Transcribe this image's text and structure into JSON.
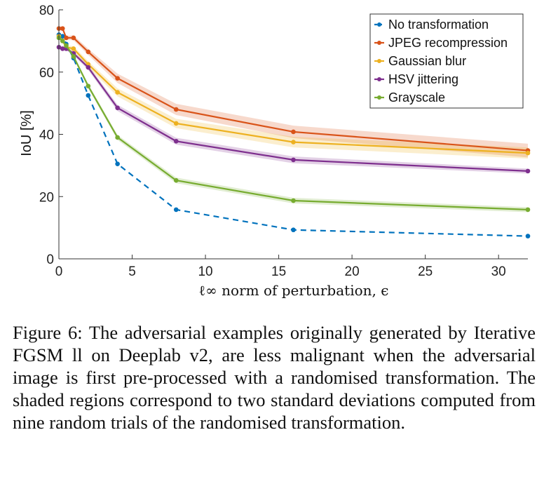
{
  "chart_data": {
    "type": "line",
    "xlabel": "ℓ∞ norm of perturbation, ϵ",
    "ylabel": "IoU [%]",
    "xlim": [
      0,
      32
    ],
    "ylim": [
      0,
      80
    ],
    "xticks": [
      0,
      5,
      10,
      15,
      20,
      25,
      30
    ],
    "yticks": [
      0,
      20,
      40,
      60,
      80
    ],
    "grid": false,
    "legend_position": "top-right",
    "x": [
      0,
      0.25,
      0.5,
      1,
      2,
      4,
      8,
      16,
      32
    ],
    "series": [
      {
        "name": "No transformation",
        "color": "#0072BD",
        "dashed": true,
        "values": [
          72.0,
          71.5,
          69.0,
          64.5,
          52.5,
          30.5,
          15.8,
          9.3,
          7.3
        ],
        "band": [
          0,
          0,
          0,
          0,
          0,
          0,
          0,
          0,
          0
        ]
      },
      {
        "name": "JPEG recompression",
        "color": "#D95319",
        "dashed": false,
        "values": [
          74.0,
          74.0,
          71.0,
          71.0,
          66.5,
          58.0,
          48.0,
          40.8,
          34.8
        ],
        "band": [
          0.5,
          0.5,
          0.6,
          0.8,
          1.0,
          1.5,
          1.8,
          2.0,
          2.2
        ]
      },
      {
        "name": "Gaussian blur",
        "color": "#EDB120",
        "dashed": false,
        "values": [
          71.5,
          70.0,
          68.0,
          67.5,
          62.5,
          53.5,
          43.5,
          37.5,
          34.0
        ],
        "band": [
          0.5,
          0.5,
          0.6,
          0.8,
          1.0,
          1.3,
          1.5,
          1.7,
          1.8
        ]
      },
      {
        "name": "HSV jittering",
        "color": "#7E2F8E",
        "dashed": false,
        "values": [
          68.0,
          67.5,
          67.5,
          66.0,
          61.5,
          48.5,
          37.8,
          31.8,
          28.2
        ],
        "band": [
          0.4,
          0.4,
          0.5,
          0.6,
          0.8,
          1.0,
          1.1,
          1.1,
          0.8
        ]
      },
      {
        "name": "Grayscale",
        "color": "#77AC30",
        "dashed": false,
        "values": [
          71.0,
          70.0,
          68.5,
          65.0,
          55.5,
          39.0,
          25.2,
          18.7,
          15.8
        ],
        "band": [
          0.4,
          0.4,
          0.5,
          0.6,
          0.7,
          0.8,
          0.9,
          0.9,
          0.8
        ]
      }
    ]
  },
  "caption": "Figure 6: The adversarial examples originally generated by Iterative FGSM ll on Deeplab v2, are less malignant when the adversarial image is first pre-processed with a randomised transformation. The shaded regions correspond to two standard deviations computed from nine random trials of the randomised transformation."
}
